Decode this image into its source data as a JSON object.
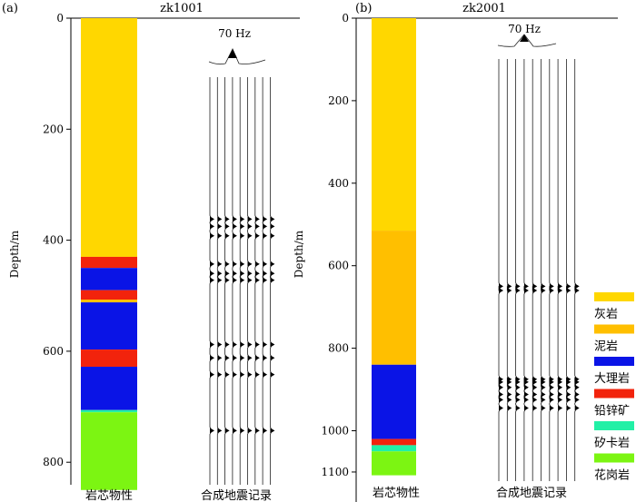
{
  "chart_data": [
    {
      "type": "diagram",
      "panel_label": "(a)",
      "title": "zk1001",
      "ylabel": "Depth/m",
      "ylim": [
        0,
        850
      ],
      "yticks": [
        0,
        200,
        400,
        600,
        800
      ],
      "frequency_label": "70 Hz",
      "core_label": "岩芯物性",
      "seismic_label": "合成地震记录",
      "layers": [
        {
          "top": 0,
          "bottom": 430,
          "lith": "limestone"
        },
        {
          "top": 430,
          "bottom": 450,
          "lith": "lead-zinc"
        },
        {
          "top": 450,
          "bottom": 490,
          "lith": "marble"
        },
        {
          "top": 490,
          "bottom": 507,
          "lith": "lead-zinc"
        },
        {
          "top": 507,
          "bottom": 512,
          "lith": "mudstone"
        },
        {
          "top": 512,
          "bottom": 597,
          "lith": "marble"
        },
        {
          "top": 597,
          "bottom": 628,
          "lith": "lead-zinc"
        },
        {
          "top": 628,
          "bottom": 706,
          "lith": "marble"
        },
        {
          "top": 706,
          "bottom": 710,
          "lith": "skarn"
        },
        {
          "top": 710,
          "bottom": 850,
          "lith": "granite"
        }
      ],
      "reflections": [
        362,
        375,
        392,
        443,
        460,
        472,
        588,
        612,
        642,
        743
      ]
    },
    {
      "type": "diagram",
      "panel_label": "(b)",
      "title": "zk2001",
      "ylabel": "Depth/m",
      "ylim": [
        0,
        1100
      ],
      "yticks": [
        0,
        200,
        400,
        600,
        800,
        1000,
        1100
      ],
      "frequency_label": "70 Hz",
      "core_label": "岩芯物性",
      "seismic_label": "合成地震记录",
      "layers": [
        {
          "top": 0,
          "bottom": 515,
          "lith": "limestone"
        },
        {
          "top": 515,
          "bottom": 840,
          "lith": "mudstone"
        },
        {
          "top": 840,
          "bottom": 1020,
          "lith": "marble"
        },
        {
          "top": 1020,
          "bottom": 1035,
          "lith": "lead-zinc"
        },
        {
          "top": 1035,
          "bottom": 1050,
          "lith": "skarn"
        },
        {
          "top": 1050,
          "bottom": 1108,
          "lith": "granite"
        }
      ],
      "reflections": [
        650,
        660,
        875,
        882,
        895,
        912,
        925,
        945
      ]
    }
  ],
  "legend": [
    {
      "key": "limestone",
      "label": "灰岩",
      "color": "#FFD700"
    },
    {
      "key": "mudstone",
      "label": "泥岩",
      "color": "#FFBF00"
    },
    {
      "key": "marble",
      "label": "大理岩",
      "color": "#0A14E6"
    },
    {
      "key": "lead-zinc",
      "label": "铅锌矿",
      "color": "#F2230C"
    },
    {
      "key": "skarn",
      "label": "矽卡岩",
      "color": "#22F0A6"
    },
    {
      "key": "granite",
      "label": "花岗岩",
      "color": "#7CF512"
    }
  ]
}
